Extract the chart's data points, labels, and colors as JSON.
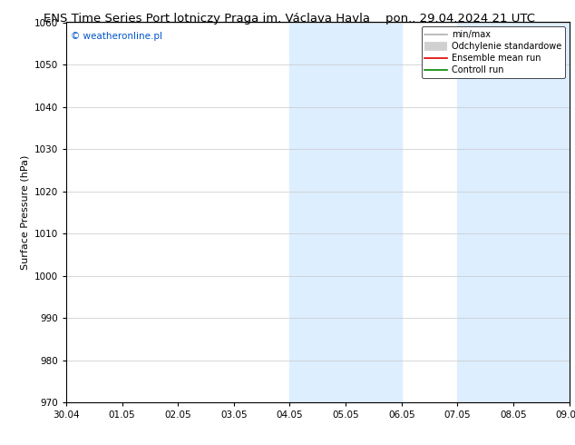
{
  "title": "ENS Time Series Port lotniczy Praga im. Václava Havla",
  "title_right": "pon.. 29.04.2024 21 UTC",
  "ylabel": "Surface Pressure (hPa)",
  "watermark": "© weatheronline.pl",
  "ylim": [
    970,
    1060
  ],
  "yticks": [
    970,
    980,
    990,
    1000,
    1010,
    1020,
    1030,
    1040,
    1050,
    1060
  ],
  "xtick_labels": [
    "30.04",
    "01.05",
    "02.05",
    "03.05",
    "04.05",
    "05.05",
    "06.05",
    "07.05",
    "08.05",
    "09.05"
  ],
  "xtick_positions": [
    0,
    1,
    2,
    3,
    4,
    5,
    6,
    7,
    8,
    9
  ],
  "shade_regions": [
    {
      "xmin": 4,
      "xmax": 6
    },
    {
      "xmin": 7,
      "xmax": 9
    }
  ],
  "shade_color": "#ddeeff",
  "grid_color": "#c8c8c8",
  "legend_entries": [
    {
      "label": "min/max",
      "color": "#b0b0b0",
      "lw": 1.2,
      "style": "line"
    },
    {
      "label": "Odchylenie standardowe",
      "color": "#d0d0d0",
      "lw": 7,
      "style": "thick"
    },
    {
      "label": "Ensemble mean run",
      "color": "#dd0000",
      "lw": 1.2,
      "style": "line"
    },
    {
      "label": "Controll run",
      "color": "#008800",
      "lw": 1.2,
      "style": "line"
    }
  ],
  "background_color": "#ffffff",
  "plot_bg_color": "#ffffff",
  "title_fontsize": 9.5,
  "axis_fontsize": 7.5,
  "ylabel_fontsize": 8,
  "legend_fontsize": 7,
  "watermark_fontsize": 7.5
}
